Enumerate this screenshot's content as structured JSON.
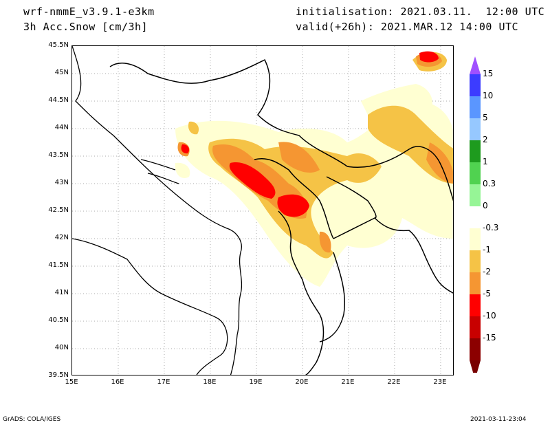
{
  "header": {
    "model": "wrf-nmmE_v3.9.1-e3km",
    "variable": "3h Acc.Snow [cm/3h]",
    "init": "initialisation: 2021.03.11.  12:00 UTC",
    "valid": "valid(+26h): 2021.MAR.12 14:00 UTC"
  },
  "map": {
    "lon_range": [
      15,
      23.3
    ],
    "lat_range": [
      39.5,
      45.5
    ],
    "lat_ticks": [
      "39.5N",
      "40N",
      "40.5N",
      "41N",
      "41.5N",
      "42N",
      "42.5N",
      "43N",
      "43.5N",
      "44N",
      "44.5N",
      "45N",
      "45.5N"
    ],
    "lon_ticks": [
      "15E",
      "16E",
      "17E",
      "18E",
      "19E",
      "20E",
      "21E",
      "22E",
      "23E"
    ]
  },
  "colorbar": {
    "labels": [
      "15",
      "10",
      "5",
      "2",
      "1",
      "0.3",
      "0",
      "-0.3",
      "-1",
      "-2",
      "-5",
      "-10",
      "-15"
    ],
    "colors": [
      "#3c3cff",
      "#5a96ff",
      "#96c8ff",
      "#1e9b1e",
      "#50d250",
      "#96f596",
      "#ffffff",
      "#ffffd2",
      "#f5c346",
      "#f59632",
      "#ff0000",
      "#c80000",
      "#8c0000"
    ],
    "top_color": "#a050ff",
    "bottom_color": "#780000"
  },
  "footer": {
    "left": "GrADS: COLA/IGES",
    "right": "2021-03-11-23:04"
  }
}
